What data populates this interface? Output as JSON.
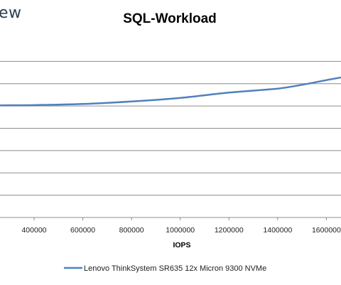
{
  "logo_text": "ew",
  "chart_data": {
    "type": "line",
    "title": "SQL-Workload",
    "xlabel": "IOPS",
    "ylabel": "",
    "xlim": [
      260000,
      1660000
    ],
    "ylim": [
      0,
      8
    ],
    "x_ticks": [
      400000,
      600000,
      800000,
      1000000,
      1200000,
      1400000,
      1600000
    ],
    "x_tick_labels": [
      "400000",
      "600000",
      "800000",
      "1000000",
      "1200000",
      "1400000",
      "1600000"
    ],
    "y_gridlines": [
      1,
      2,
      3,
      4,
      5,
      6,
      7
    ],
    "grid": true,
    "legend": "bottom",
    "series": [
      {
        "name": "Lenovo ThinkSystem SR635 12x Micron 9300 NVMe",
        "color": "#4f81bd",
        "x": [
          260000,
          400000,
          600000,
          800000,
          1000000,
          1200000,
          1400000,
          1500000,
          1600000,
          1660000
        ],
        "y": [
          5.03,
          5.04,
          5.09,
          5.2,
          5.36,
          5.6,
          5.78,
          5.95,
          6.16,
          6.28
        ]
      }
    ]
  }
}
